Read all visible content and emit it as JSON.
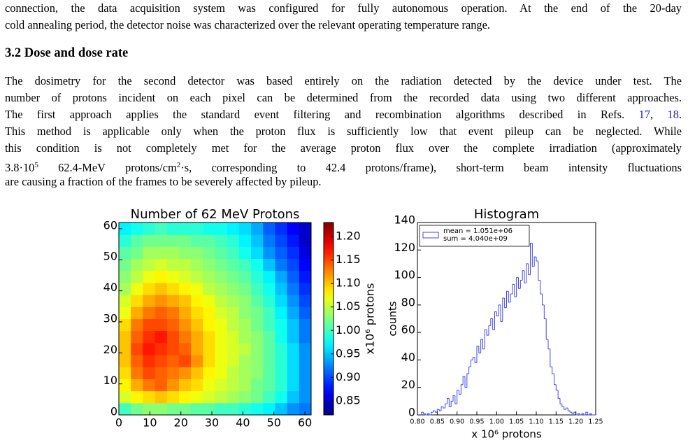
{
  "text": {
    "paragraphs": [
      {
        "lines": [
          [
            "connection, the data acquisition system was configured for fully autonomous operation. At the end of the 20-day"
          ],
          [
            "cold annealing period, the detector noise was characterized over the relevant operating temperature range."
          ]
        ]
      },
      {
        "lines": [
          [
            "The dosimetry for the second detector was based entirely on the radiation detected by the device under test. The"
          ],
          [
            "number of protons incident on each pixel can be determined from the recorded data using two different approaches."
          ],
          [
            "The first approach applies the standard event filtering and recombination algorithms described in Refs. ",
            {
              "text": "17",
              "style": "ref"
            },
            ", ",
            {
              "text": "18",
              "style": "ref"
            },
            "."
          ],
          [
            "This method is applicable only when the proton flux is sufficiently low that event pileup can be neglected. While"
          ],
          [
            "this condition is not completely met for the average proton flux over the complete irradiation (approximately"
          ],
          [
            "3.8·10",
            {
              "text": "5",
              "style": "sup"
            },
            " 62.4-MeV protons/cm",
            {
              "text": "2",
              "style": "sup"
            },
            "·s, corresponding to 42.4 protons/frame), short-term beam intensity fluctuations"
          ],
          [
            "are causing a fraction of the frames to be severely affected by pileup."
          ]
        ]
      }
    ],
    "heading": "3.2 Dose and dose rate"
  },
  "chart_data": [
    {
      "type": "heatmap",
      "title": "Number of 62 MeV Protons",
      "colormap": "jet",
      "xlim": [
        0,
        62
      ],
      "ylim": [
        0,
        62
      ],
      "xticks": [
        0,
        10,
        20,
        30,
        40,
        50,
        60
      ],
      "yticks": [
        0,
        10,
        20,
        30,
        40,
        50,
        60
      ],
      "clim": [
        0.82,
        1.23
      ],
      "colorbar_label": "x10⁶ protons",
      "colorbar_ticks": [
        0.85,
        {
          "value": 0.9,
          "label": "0.90"
        },
        0.95,
        {
          "value": 1,
          "label": "1.00"
        },
        1.05,
        {
          "value": 1.1,
          "label": "1.10"
        },
        1.15,
        {
          "value": 1.2,
          "label": "1.20"
        }
      ],
      "z": [
        [
          1.0,
          1.02,
          1.03,
          1.03,
          1.02,
          1.02,
          1.01,
          1.01,
          1.0,
          1.0,
          0.99,
          0.98,
          0.97,
          0.95,
          0.93,
          0.92
        ],
        [
          1.06,
          1.08,
          1.09,
          1.1,
          1.09,
          1.08,
          1.07,
          1.06,
          1.05,
          1.04,
          1.03,
          1.02,
          1.0,
          0.98,
          0.95,
          0.93
        ],
        [
          1.08,
          1.11,
          1.13,
          1.14,
          1.12,
          1.1,
          1.09,
          1.07,
          1.06,
          1.05,
          1.04,
          1.02,
          1.01,
          0.99,
          0.96,
          0.93
        ],
        [
          1.09,
          1.13,
          1.15,
          1.14,
          1.13,
          1.12,
          1.1,
          1.08,
          1.07,
          1.05,
          1.04,
          1.03,
          1.01,
          0.99,
          0.96,
          0.93
        ],
        [
          1.1,
          1.14,
          1.16,
          1.15,
          1.14,
          1.15,
          1.12,
          1.09,
          1.07,
          1.06,
          1.04,
          1.03,
          1.01,
          0.99,
          0.96,
          0.93
        ],
        [
          1.1,
          1.15,
          1.17,
          1.16,
          1.15,
          1.14,
          1.11,
          1.09,
          1.07,
          1.06,
          1.05,
          1.03,
          1.01,
          0.99,
          0.96,
          0.93
        ],
        [
          1.1,
          1.14,
          1.16,
          1.17,
          1.15,
          1.13,
          1.11,
          1.09,
          1.07,
          1.06,
          1.04,
          1.03,
          1.01,
          0.98,
          0.95,
          0.92
        ],
        [
          1.09,
          1.13,
          1.15,
          1.15,
          1.14,
          1.12,
          1.1,
          1.08,
          1.07,
          1.05,
          1.04,
          1.02,
          1.0,
          0.98,
          0.95,
          0.92
        ],
        [
          1.07,
          1.11,
          1.13,
          1.14,
          1.13,
          1.11,
          1.09,
          1.08,
          1.06,
          1.05,
          1.03,
          1.02,
          1.0,
          0.97,
          0.94,
          0.91
        ],
        [
          1.06,
          1.09,
          1.11,
          1.12,
          1.11,
          1.1,
          1.08,
          1.07,
          1.05,
          1.04,
          1.03,
          1.01,
          0.99,
          0.96,
          0.93,
          0.9
        ],
        [
          1.04,
          1.07,
          1.09,
          1.1,
          1.09,
          1.08,
          1.07,
          1.05,
          1.04,
          1.03,
          1.02,
          1.0,
          0.98,
          0.95,
          0.92,
          0.89
        ],
        [
          1.03,
          1.05,
          1.07,
          1.08,
          1.07,
          1.06,
          1.05,
          1.04,
          1.03,
          1.02,
          1.01,
          0.99,
          0.97,
          0.94,
          0.91,
          0.88
        ],
        [
          1.02,
          1.04,
          1.05,
          1.06,
          1.05,
          1.05,
          1.04,
          1.03,
          1.02,
          1.01,
          1.0,
          0.98,
          0.95,
          0.92,
          0.9,
          0.87
        ],
        [
          1.01,
          1.02,
          1.04,
          1.04,
          1.04,
          1.03,
          1.03,
          1.02,
          1.01,
          1.0,
          0.98,
          0.96,
          0.93,
          0.91,
          0.89,
          0.86
        ],
        [
          0.99,
          1.01,
          1.02,
          1.02,
          1.02,
          1.02,
          1.01,
          1.01,
          1.0,
          0.99,
          0.97,
          0.95,
          0.92,
          0.9,
          0.88,
          0.85
        ],
        [
          0.97,
          0.98,
          0.99,
          1.0,
          0.99,
          0.99,
          0.99,
          0.98,
          0.98,
          0.97,
          0.96,
          0.94,
          0.91,
          0.89,
          0.87,
          0.85
        ]
      ]
    },
    {
      "type": "histogram",
      "title": "Histogram",
      "color": "#4444ee",
      "x_label": "x 10⁶ protons",
      "y_label": "counts",
      "legend": [
        "mean = 1.051e+06",
        "sum = 4.040e+09"
      ],
      "legend_position": "upper left",
      "xlim": [
        0.8,
        1.25
      ],
      "ylim": [
        0,
        140
      ],
      "xticks": [
        {
          "value": 0.8,
          "label": "0.80"
        },
        0.85,
        {
          "value": 0.9,
          "label": "0.90"
        },
        0.95,
        {
          "value": 1,
          "label": "1.00"
        },
        1.05,
        {
          "value": 1.1,
          "label": "1.10"
        },
        1.15,
        {
          "value": 1.2,
          "label": "1.20"
        },
        1.25
      ],
      "yticks": [
        0,
        20,
        40,
        60,
        80,
        100,
        120,
        140
      ],
      "bins": [
        0.8,
        0.805,
        0.81,
        0.815,
        0.82,
        0.825,
        0.83,
        0.835,
        0.84,
        0.845,
        0.85,
        0.855,
        0.86,
        0.865,
        0.87,
        0.875,
        0.88,
        0.885,
        0.89,
        0.895,
        0.9,
        0.905,
        0.91,
        0.915,
        0.92,
        0.925,
        0.93,
        0.935,
        0.94,
        0.945,
        0.95,
        0.955,
        0.96,
        0.965,
        0.97,
        0.975,
        0.98,
        0.985,
        0.99,
        0.995,
        1.0,
        1.005,
        1.01,
        1.015,
        1.02,
        1.025,
        1.03,
        1.035,
        1.04,
        1.045,
        1.05,
        1.055,
        1.06,
        1.065,
        1.07,
        1.075,
        1.08,
        1.085,
        1.09,
        1.095,
        1.1,
        1.105,
        1.11,
        1.115,
        1.12,
        1.125,
        1.13,
        1.135,
        1.14,
        1.145,
        1.15,
        1.155,
        1.16,
        1.165,
        1.17,
        1.175,
        1.18,
        1.185,
        1.19,
        1.195,
        1.2,
        1.205,
        1.21,
        1.215,
        1.22,
        1.225,
        1.23,
        1.235,
        1.24,
        1.245,
        1.25
      ],
      "counts": [
        0,
        0,
        2,
        1,
        0,
        1,
        0,
        2,
        3,
        2,
        4,
        3,
        6,
        5,
        8,
        12,
        6,
        10,
        14,
        8,
        18,
        15,
        22,
        28,
        20,
        30,
        35,
        40,
        42,
        38,
        50,
        45,
        55,
        48,
        62,
        58,
        65,
        70,
        62,
        75,
        72,
        80,
        68,
        85,
        78,
        90,
        82,
        88,
        95,
        86,
        100,
        92,
        98,
        105,
        96,
        110,
        102,
        125,
        108,
        115,
        112,
        98,
        88,
        80,
        70,
        55,
        48,
        35,
        30,
        22,
        18,
        12,
        8,
        6,
        4,
        5,
        3,
        2,
        1,
        2,
        0,
        1,
        0,
        1,
        0,
        2,
        0,
        1,
        0,
        0
      ]
    }
  ]
}
